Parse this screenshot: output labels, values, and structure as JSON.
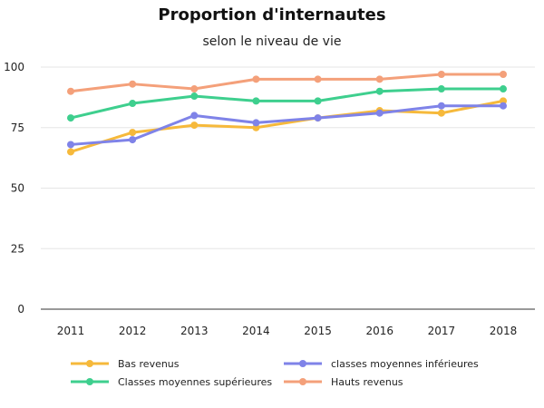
{
  "chart_data": {
    "type": "line",
    "title": "Proportion d'internautes",
    "subtitle": "selon le niveau de vie",
    "x": [
      "2011",
      "2012",
      "2013",
      "2014",
      "2015",
      "2016",
      "2017",
      "2018"
    ],
    "ylim": [
      0,
      100
    ],
    "yticks": [
      "0",
      "25",
      "50",
      "75",
      "100"
    ],
    "grid": true,
    "legend_position": "bottom",
    "series": [
      {
        "name": "Bas revenus",
        "color": "#f6b93b",
        "values": [
          65,
          73,
          76,
          75,
          79,
          82,
          81,
          86
        ]
      },
      {
        "name": "classes moyennes inférieures",
        "color": "#7f83e8",
        "values": [
          68,
          70,
          80,
          77,
          79,
          81,
          84,
          84
        ]
      },
      {
        "name": "Classes moyennes supérieures",
        "color": "#3ecf8e",
        "values": [
          79,
          85,
          88,
          86,
          86,
          90,
          91,
          91
        ]
      },
      {
        "name": "Hauts revenus",
        "color": "#f4a07a",
        "values": [
          90,
          93,
          91,
          95,
          95,
          95,
          97,
          97
        ]
      }
    ]
  }
}
